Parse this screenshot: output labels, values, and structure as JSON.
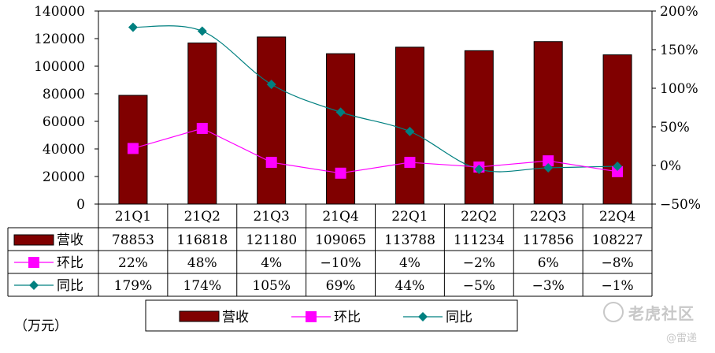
{
  "chart_data": {
    "type": "bar",
    "categories": [
      "21Q1",
      "21Q2",
      "21Q3",
      "21Q4",
      "22Q1",
      "22Q2",
      "22Q3",
      "22Q4"
    ],
    "left_axis": {
      "min": 0,
      "max": 140000,
      "step": 20000,
      "ticks": [
        "0",
        "20000",
        "40000",
        "60000",
        "80000",
        "100000",
        "120000",
        "140000"
      ]
    },
    "right_axis": {
      "min": -50,
      "max": 200,
      "step": 50,
      "ticks": [
        "-50%",
        "0%",
        "50%",
        "100%",
        "150%",
        "200%"
      ]
    },
    "unit_label": "（万元）",
    "grid": false,
    "legend_position": "bottom",
    "series": [
      {
        "name": "营收",
        "type": "bar",
        "axis": "left",
        "color": "#800000",
        "values": [
          78853,
          116818,
          121180,
          109065,
          113788,
          111234,
          117856,
          108227
        ],
        "labels": [
          "78853",
          "116818",
          "121180",
          "109065",
          "113788",
          "111234",
          "117856",
          "108227"
        ]
      },
      {
        "name": "环比",
        "type": "line",
        "axis": "right",
        "color": "#ff00ff",
        "marker": "square",
        "values": [
          22,
          48,
          4,
          -10,
          4,
          -2,
          6,
          -8
        ],
        "labels": [
          "22%",
          "48%",
          "4%",
          "−10%",
          "4%",
          "−2%",
          "6%",
          "−8%"
        ]
      },
      {
        "name": "同比",
        "type": "line",
        "axis": "right",
        "color": "#008080",
        "marker": "diamond",
        "smooth": true,
        "values": [
          179,
          174,
          105,
          69,
          44,
          -5,
          -3,
          -1
        ],
        "labels": [
          "179%",
          "174%",
          "105%",
          "69%",
          "44%",
          "−5%",
          "−3%",
          "−1%"
        ]
      }
    ]
  },
  "watermark": {
    "brand": "老虎社区",
    "source": "@雷递"
  }
}
